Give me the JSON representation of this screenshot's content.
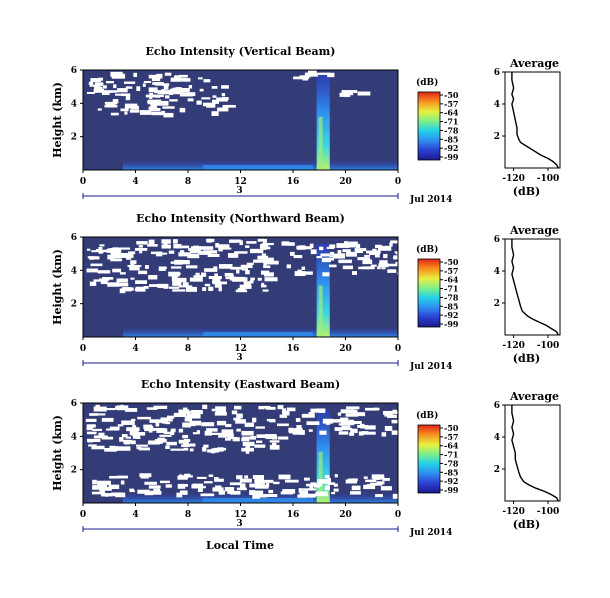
{
  "figure": {
    "xlabel": "Local Time",
    "date_label": "3",
    "month_year_label": "Jul 2014"
  },
  "colorbar": {
    "unit_label": "(dB)",
    "ticks": [
      "-50",
      "-57",
      "-64",
      "-71",
      "-78",
      "-85",
      "-92",
      "-99"
    ],
    "colors": [
      "#1a1a8c",
      "#2a3fd0",
      "#2f8ff0",
      "#25d0e8",
      "#7cf08a",
      "#e8f040",
      "#f89020",
      "#e02418"
    ]
  },
  "chart_data": [
    {
      "type": "heatmap",
      "title": "Echo Intensity (Vertical Beam)",
      "ylabel": "Height (km)",
      "xlim": [
        0,
        24
      ],
      "ylim": [
        0,
        6
      ],
      "x_ticks": [
        "0",
        "4",
        "8",
        "12",
        "16",
        "20",
        "0"
      ],
      "y_ticks": [
        "2",
        "4",
        "6"
      ],
      "colorbar_range_db": [
        -99,
        -50
      ],
      "no_data_regions": [
        {
          "x": [
            0.3,
            11
          ],
          "y": [
            3.4,
            5.9
          ]
        },
        {
          "x": [
            16,
            19
          ],
          "y": [
            5.6,
            6
          ]
        },
        {
          "x": [
            19.5,
            21
          ],
          "y": [
            4.5,
            4.8
          ]
        }
      ],
      "plume": {
        "x": [
          17.8,
          18.8
        ],
        "y": [
          0,
          5.8
        ]
      }
    },
    {
      "type": "line",
      "title": "Average",
      "xlabel": "(dB)",
      "x_ticks": [
        "-120",
        "-100"
      ],
      "y_ticks": [
        "2",
        "4",
        "6"
      ],
      "xlim": [
        -125,
        -93
      ],
      "ylim": [
        0,
        6
      ],
      "x": [
        -121,
        -121,
        -120,
        -121,
        -120,
        -121,
        -120,
        -119,
        -118,
        -118,
        -117,
        -116,
        -113,
        -110,
        -107,
        -104,
        -100,
        -97,
        -95,
        -94
      ],
      "y": [
        6,
        5.5,
        5,
        4.6,
        4.3,
        4,
        3.5,
        3,
        2.5,
        2.1,
        1.8,
        1.6,
        1.4,
        1.2,
        1.0,
        0.8,
        0.6,
        0.4,
        0.2,
        0
      ]
    },
    {
      "type": "heatmap",
      "title": "Echo Intensity (Northward Beam)",
      "ylabel": "Height (km)",
      "xlim": [
        0,
        24
      ],
      "ylim": [
        0,
        6
      ],
      "x_ticks": [
        "0",
        "4",
        "8",
        "12",
        "16",
        "20",
        "0"
      ],
      "y_ticks": [
        "2",
        "4",
        "6"
      ],
      "colorbar_range_db": [
        -99,
        -50
      ],
      "no_data_regions": [
        {
          "x": [
            0.2,
            14
          ],
          "y": [
            2.8,
            5.9
          ]
        },
        {
          "x": [
            15,
            24
          ],
          "y": [
            3.8,
            5.8
          ]
        }
      ],
      "plume": {
        "x": [
          17.8,
          18.8
        ],
        "y": [
          0,
          5.6
        ]
      }
    },
    {
      "type": "line",
      "title": "Average",
      "xlabel": "(dB)",
      "x_ticks": [
        "-120",
        "-100"
      ],
      "y_ticks": [
        "2",
        "4",
        "6"
      ],
      "xlim": [
        -125,
        -93
      ],
      "ylim": [
        0,
        6
      ],
      "x": [
        -121,
        -121,
        -120,
        -121,
        -120,
        -121,
        -120,
        -119,
        -118,
        -117,
        -116,
        -115,
        -112,
        -109,
        -105,
        -101,
        -98,
        -95,
        -94
      ],
      "y": [
        6,
        5.5,
        5,
        4.6,
        4.2,
        3.8,
        3.4,
        3,
        2.6,
        2.2,
        1.8,
        1.5,
        1.2,
        1.0,
        0.8,
        0.6,
        0.4,
        0.2,
        0
      ]
    },
    {
      "type": "heatmap",
      "title": "Echo Intensity (Eastward Beam)",
      "ylabel": "Height (km)",
      "xlim": [
        0,
        24
      ],
      "ylim": [
        0,
        6
      ],
      "x_ticks": [
        "0",
        "4",
        "8",
        "12",
        "16",
        "20",
        "0"
      ],
      "y_ticks": [
        "2",
        "4",
        "6"
      ],
      "colorbar_range_db": [
        -99,
        -50
      ],
      "no_data_regions": [
        {
          "x": [
            0.2,
            15
          ],
          "y": [
            3.2,
            5.9
          ]
        },
        {
          "x": [
            15,
            24
          ],
          "y": [
            4.2,
            5.8
          ]
        },
        {
          "x": [
            0.5,
            24
          ],
          "y": [
            0.5,
            1.8
          ]
        }
      ],
      "plume": {
        "x": [
          17.8,
          18.8
        ],
        "y": [
          0,
          5.6
        ]
      }
    },
    {
      "type": "line",
      "title": "Average",
      "xlabel": "(dB)",
      "x_ticks": [
        "-120",
        "-100"
      ],
      "y_ticks": [
        "2",
        "4",
        "6"
      ],
      "xlim": [
        -125,
        -93
      ],
      "ylim": [
        0,
        6
      ],
      "x": [
        -121,
        -121,
        -120,
        -121,
        -120,
        -121,
        -120,
        -119,
        -119,
        -118,
        -117,
        -116,
        -114,
        -111,
        -107,
        -102,
        -98,
        -95,
        -94
      ],
      "y": [
        6,
        5.5,
        5,
        4.6,
        4.2,
        3.8,
        3.4,
        3,
        2.6,
        2.2,
        1.8,
        1.5,
        1.2,
        1.0,
        0.8,
        0.6,
        0.4,
        0.2,
        0
      ]
    }
  ]
}
